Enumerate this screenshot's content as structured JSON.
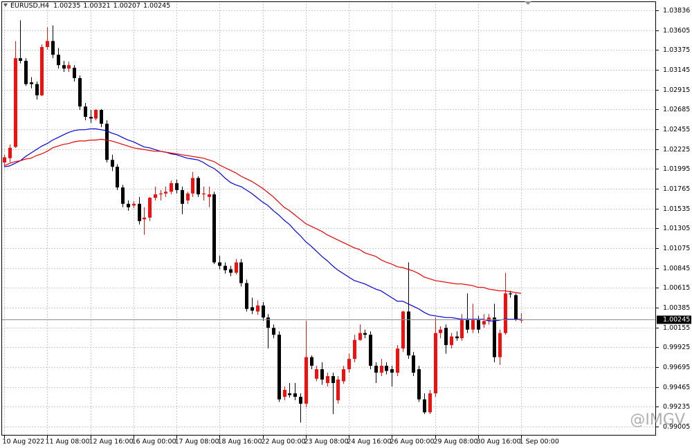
{
  "chart_data": {
    "type": "candlestick",
    "title": "EURUSD,H4",
    "watermark": "@IMGV",
    "categories": [
      "10 Aug 2022",
      null,
      null,
      null,
      null,
      null,
      null,
      null,
      "11 Aug 08:00",
      null,
      null,
      null,
      null,
      null,
      null,
      null,
      "12 Aug 16:00",
      null,
      null,
      null,
      null,
      null,
      null,
      null,
      "16 Aug 00:00",
      null,
      null,
      null,
      null,
      null,
      null,
      null,
      "17 Aug 08:00",
      null,
      null,
      null,
      null,
      null,
      null,
      null,
      "18 Aug 16:00",
      null,
      null,
      null,
      null,
      null,
      null,
      null,
      "22 Aug 00:00",
      null,
      null,
      null,
      null,
      null,
      null,
      null,
      "23 Aug 08:00",
      null,
      null,
      null,
      null,
      null,
      null,
      null,
      "24 Aug 16:00",
      null,
      null,
      null,
      null,
      null,
      null,
      null,
      "26 Aug 00:00",
      null,
      null,
      null,
      null,
      null,
      null,
      null,
      "29 Aug 08:00",
      null,
      null,
      null,
      null,
      null,
      null,
      null,
      "30 Aug 16:00",
      null,
      null,
      null,
      null,
      null,
      null,
      null,
      "1 Sep 00:00"
    ],
    "open": [
      1.0207,
      1.0212,
      1.0225,
      1.0328,
      1.0325,
      1.03,
      1.0298,
      1.0285,
      1.0341,
      1.0348,
      1.0332,
      1.032,
      1.0316,
      1.0317,
      1.0305,
      1.0272,
      1.026,
      1.0258,
      1.0268,
      1.0252,
      1.021,
      1.0202,
      1.0178,
      1.0159,
      1.0157,
      1.0159,
      1.0141,
      1.0143,
      1.0166,
      1.017,
      1.0171,
      1.0173,
      1.0183,
      1.0175,
      1.0163,
      1.0171,
      1.0189,
      1.017,
      1.0167,
      1.017,
      1.0091,
      1.0087,
      1.0083,
      1.0079,
      1.0091,
      1.0067,
      1.0039,
      1.0034,
      1.0041,
      1.0027,
      1.0015,
      1.0007,
      0.9935,
      0.9939,
      0.9939,
      0.9935,
      0.9927,
      0.9981,
      0.9956,
      0.9967,
      0.9951,
      0.9959,
      0.9931,
      0.9953,
      0.9967,
      0.9979,
      1.0001,
      1.0009,
      1.0007,
      0.9971,
      0.9963,
      0.9971,
      0.9967,
      0.9963,
      0.9991,
      1.0034,
      0.9983,
      0.9967,
      0.9932,
      0.9917,
      0.9939,
      1.0009,
      1.0015,
      0.9995,
      1.0005,
      1.0003,
      1.0025,
      1.0013,
      1.0025,
      1.0019,
      1.0023,
      1.0027,
      0.9981,
      1.0009,
      1.0055,
      1.0053,
      1.00235
    ],
    "high": [
      1.0216,
      1.0228,
      1.0348,
      1.0372,
      1.0328,
      1.0306,
      1.0301,
      1.0344,
      1.0364,
      1.0366,
      1.034,
      1.0325,
      1.0324,
      1.032,
      1.0308,
      1.0276,
      1.0268,
      1.0269,
      1.0269,
      1.0256,
      1.0216,
      1.0205,
      1.0181,
      1.0163,
      1.0162,
      1.0167,
      1.0155,
      1.0167,
      1.0179,
      1.0175,
      1.0179,
      1.0186,
      1.0187,
      1.0179,
      1.0173,
      1.0196,
      1.0191,
      1.0179,
      1.0179,
      1.0173,
      1.0099,
      1.0091,
      1.0087,
      1.0095,
      1.0095,
      1.0071,
      1.005,
      1.0047,
      1.0045,
      1.0031,
      1.0019,
      1.0011,
      0.9947,
      0.9951,
      0.9951,
      0.9939,
      1.0023,
      0.9983,
      0.9971,
      0.9975,
      0.9963,
      0.9963,
      0.9959,
      0.9971,
      0.9985,
      1.0007,
      1.0019,
      1.0013,
      1.0011,
      0.9975,
      0.9979,
      0.9975,
      0.9971,
      0.9995,
      1.0035,
      1.0091,
      0.9987,
      0.9971,
      0.9939,
      0.9943,
      1.0027,
      1.0017,
      1.0019,
      1.0009,
      1.0011,
      1.0031,
      1.0055,
      1.0043,
      1.0029,
      1.0031,
      1.0031,
      1.0043,
      1.0013,
      1.0079,
      1.0058,
      1.0055,
      1.00321
    ],
    "low": [
      1.0204,
      1.0207,
      1.0224,
      1.0322,
      1.0296,
      1.0293,
      1.028,
      1.0284,
      1.0338,
      1.0328,
      1.0316,
      1.0312,
      1.0312,
      1.0301,
      1.0268,
      1.0256,
      1.0253,
      1.0256,
      1.0248,
      1.0207,
      1.0197,
      1.0175,
      1.0155,
      1.0151,
      1.0154,
      1.0135,
      1.0123,
      1.0139,
      1.0163,
      1.0163,
      1.0167,
      1.017,
      1.0171,
      1.0147,
      1.0159,
      1.0167,
      1.0167,
      1.0163,
      1.0155,
      1.0089,
      1.0083,
      1.0078,
      1.0075,
      1.0077,
      1.0063,
      1.0034,
      1.0031,
      1.003,
      1.0023,
      0.9991,
      1.0003,
      0.9929,
      0.9931,
      0.9934,
      0.9931,
      0.9905,
      0.9923,
      0.9967,
      0.9953,
      0.9949,
      0.9947,
      0.9915,
      0.9927,
      0.995,
      0.9963,
      0.9975,
      1.0,
      1.0003,
      0.9967,
      0.9951,
      0.9959,
      0.9961,
      0.9947,
      0.9959,
      0.9987,
      0.9979,
      0.9959,
      0.9929,
      0.9915,
      0.9915,
      0.9935,
      1.0003,
      0.9985,
      0.9991,
      1.0,
      1.0,
      1.0009,
      1.0009,
      1.0009,
      1.0015,
      1.0019,
      0.9975,
      0.9972,
      1.0007,
      1.005,
      1.0023,
      1.00207
    ],
    "close": [
      1.0213,
      1.0224,
      1.0328,
      1.0325,
      1.0298,
      1.0298,
      1.0285,
      1.0341,
      1.0348,
      1.0332,
      1.032,
      1.0316,
      1.032,
      1.0305,
      1.0272,
      1.026,
      1.0258,
      1.0268,
      1.0252,
      1.021,
      1.0202,
      1.0178,
      1.0159,
      1.0155,
      1.0159,
      1.0139,
      1.0143,
      1.0166,
      1.017,
      1.0171,
      1.0173,
      1.0183,
      1.0175,
      1.0159,
      1.0171,
      1.0189,
      1.017,
      1.0171,
      1.017,
      1.0091,
      1.0087,
      1.0082,
      1.0079,
      1.0091,
      1.0067,
      1.0037,
      1.0035,
      1.0041,
      1.0027,
      1.0015,
      1.0007,
      0.9932,
      0.9943,
      0.9937,
      0.9935,
      0.9927,
      0.9981,
      0.9971,
      0.9967,
      0.9955,
      0.9959,
      0.9951,
      0.9955,
      0.9967,
      0.9979,
      1.0001,
      1.0009,
      1.0007,
      0.9971,
      0.9963,
      0.9971,
      0.9965,
      0.9963,
      0.9991,
      1.0034,
      0.9983,
      0.9963,
      0.9932,
      0.9917,
      0.9939,
      1.0009,
      1.0013,
      0.9995,
      1.0005,
      1.0003,
      1.0025,
      1.0013,
      1.0025,
      1.0013,
      1.0023,
      1.0027,
      0.9981,
      1.0009,
      1.0055,
      1.0054,
      1.0025,
      1.00245
    ],
    "up_color": "#f01010",
    "down_color": "#000000",
    "moving_averages": [
      {
        "color": "#0000e0",
        "values": [
          1.0202,
          1.0203,
          1.0206,
          1.0209,
          1.0214,
          1.0218,
          1.0222,
          1.0226,
          1.0229,
          1.0233,
          1.0236,
          1.0239,
          1.0242,
          1.0244,
          1.0245,
          1.0245,
          1.0246,
          1.0246,
          1.0245,
          1.0244,
          1.0241,
          1.0239,
          1.0236,
          1.0233,
          1.0231,
          1.0228,
          1.0225,
          1.0224,
          1.0222,
          1.022,
          1.0219,
          1.0217,
          1.0216,
          1.0214,
          1.0212,
          1.0211,
          1.021,
          1.0207,
          1.0203,
          1.02,
          1.0195,
          1.0189,
          1.0184,
          1.0181,
          1.0179,
          1.0175,
          1.0171,
          1.0166,
          1.0161,
          1.0157,
          1.0151,
          1.0146,
          1.014,
          1.0135,
          1.0128,
          1.0122,
          1.0115,
          1.011,
          1.0104,
          1.0098,
          1.0093,
          1.0087,
          1.0082,
          1.0078,
          1.0074,
          1.007,
          1.0068,
          1.0066,
          1.0063,
          1.006,
          1.0058,
          1.0054,
          1.005,
          1.0046,
          1.0046,
          1.0043,
          1.004,
          1.0037,
          1.0033,
          1.003,
          1.0029,
          1.0028,
          1.0027,
          1.0027,
          1.0026,
          1.0025,
          1.0025,
          1.0025,
          1.0025,
          1.0025,
          1.0023,
          1.0023,
          1.0024,
          1.0025,
          1.0025,
          1.0025,
          1.0025
        ]
      },
      {
        "color": "#e80000",
        "values": [
          1.0203,
          1.0206,
          1.0208,
          1.0209,
          1.0211,
          1.0212,
          1.0215,
          1.0217,
          1.022,
          1.0224,
          1.0226,
          1.0228,
          1.0229,
          1.0231,
          1.0232,
          1.0232,
          1.0233,
          1.0233,
          1.0234,
          1.0233,
          1.0232,
          1.023,
          1.0228,
          1.0226,
          1.0224,
          1.0223,
          1.0222,
          1.0221,
          1.022,
          1.022,
          1.0219,
          1.0218,
          1.0217,
          1.0216,
          1.0215,
          1.0214,
          1.0213,
          1.0212,
          1.021,
          1.0208,
          1.0204,
          1.0201,
          1.0198,
          1.0195,
          1.0191,
          1.0188,
          1.0185,
          1.0181,
          1.0177,
          1.0172,
          1.0167,
          1.0161,
          1.0155,
          1.0151,
          1.0146,
          1.0141,
          1.0136,
          1.0133,
          1.013,
          1.0127,
          1.0123,
          1.012,
          1.0117,
          1.0114,
          1.0111,
          1.0108,
          1.0106,
          1.0102,
          1.01,
          1.0098,
          1.0094,
          1.0091,
          1.0089,
          1.0086,
          1.0085,
          1.0083,
          1.0081,
          1.0078,
          1.0074,
          1.0072,
          1.007,
          1.0069,
          1.0068,
          1.0067,
          1.0066,
          1.0066,
          1.0065,
          1.0064,
          1.0062,
          1.0062,
          1.006,
          1.0059,
          1.0058,
          1.0058,
          1.0057,
          1.0056,
          1.0055
        ]
      }
    ],
    "ylim": [
      0.989,
      1.0394
    ],
    "yticks": [
      1.03836,
      1.03605,
      1.03375,
      1.03145,
      1.02915,
      1.02685,
      1.02455,
      1.02225,
      1.01995,
      1.01765,
      1.01535,
      1.01305,
      1.01075,
      1.00845,
      1.00615,
      1.00385,
      1.00155,
      0.99925,
      0.99695,
      0.99465,
      0.99235,
      0.99005
    ],
    "grid": true
  }
}
